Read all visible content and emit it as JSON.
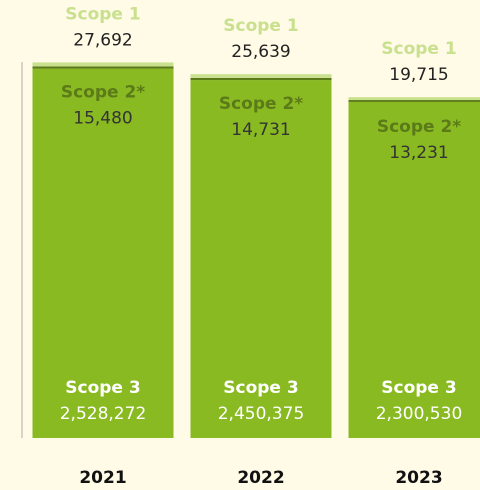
{
  "chart_data": {
    "type": "stacked_bar",
    "categories": [
      "2021",
      "2022",
      "2023"
    ],
    "ylim": [
      0,
      2800000
    ],
    "series": [
      {
        "name": "Scope 3",
        "color": "#8aba22",
        "values": [
          2528272,
          2450375,
          2300530
        ],
        "value_labels": [
          "2,528,272",
          "2,450,375",
          "2,300,530"
        ]
      },
      {
        "name": "Scope 2*",
        "color": "#5b7a18",
        "values": [
          15480,
          14731,
          13231
        ],
        "value_labels": [
          "15,480",
          "14,731",
          "13,231"
        ]
      },
      {
        "name": "Scope 1",
        "color": "#c9e08f",
        "values": [
          27692,
          25639,
          19715
        ],
        "value_labels": [
          "27,692",
          "25,639",
          "19,715"
        ]
      }
    ]
  }
}
